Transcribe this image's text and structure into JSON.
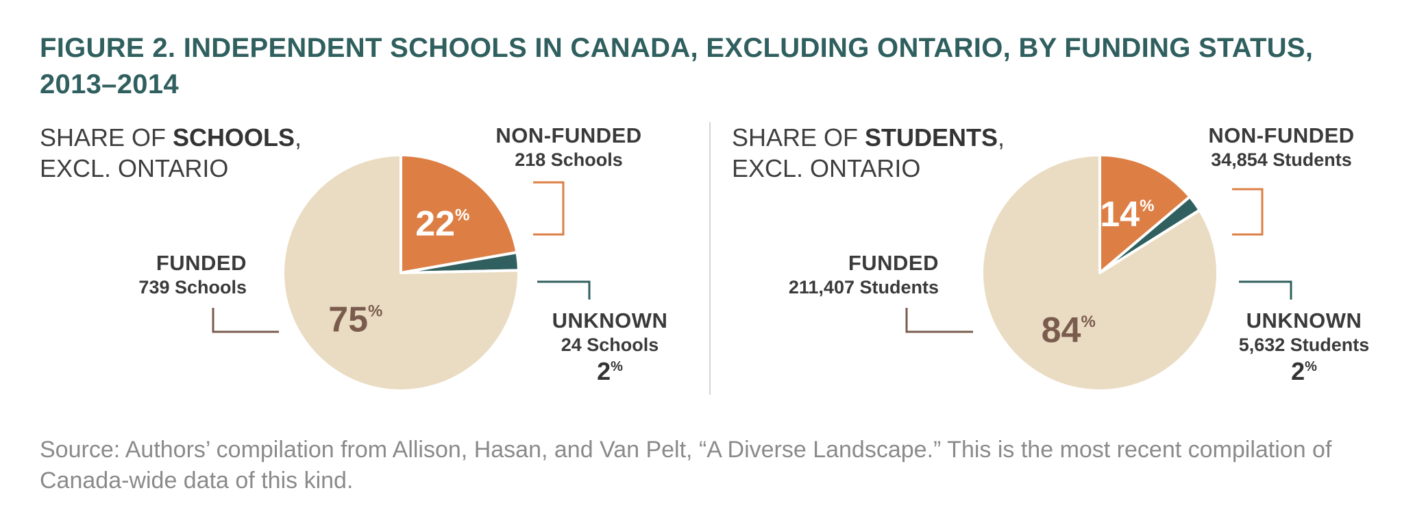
{
  "title": "FIGURE 2. INDEPENDENT SCHOOLS IN CANADA, EXCLUDING ONTARIO, BY FUNDING STATUS, 2013–2014",
  "source": "Source: Authors’ compilation from Allison, Hasan, and Van Pelt, “A Diverse Landscape.” This is the most recent compilation of Canada-wide data of this kind.",
  "colors": {
    "funded": "#eadcc2",
    "non_funded": "#dd7f45",
    "unknown": "#2f5f5e",
    "funded_text": "#7a5c4e",
    "title": "#2f5f5e"
  },
  "chart_data": [
    {
      "type": "pie",
      "title_prefix": "SHARE OF ",
      "title_bold": "SCHOOLS",
      "title_suffix": ",",
      "title_line2": "EXCL. ONTARIO",
      "slices": [
        {
          "key": "non_funded",
          "label": "NON-FUNDED",
          "count_text": "218 Schools",
          "count": 218,
          "percent": 22,
          "color": "#dd7f45"
        },
        {
          "key": "unknown",
          "label": "UNKNOWN",
          "count_text": "24 Schools",
          "count": 24,
          "percent": 2,
          "color": "#2f5f5e"
        },
        {
          "key": "funded",
          "label": "FUNDED",
          "count_text": "739 Schools",
          "count": 739,
          "percent": 75,
          "color": "#eadcc2"
        }
      ]
    },
    {
      "type": "pie",
      "title_prefix": "SHARE OF ",
      "title_bold": "STUDENTS",
      "title_suffix": ",",
      "title_line2": "EXCL. ONTARIO",
      "slices": [
        {
          "key": "non_funded",
          "label": "NON-FUNDED",
          "count_text": "34,854 Students",
          "count": 34854,
          "percent": 14,
          "color": "#dd7f45"
        },
        {
          "key": "unknown",
          "label": "UNKNOWN",
          "count_text": "5,632 Students",
          "count": 5632,
          "percent": 2,
          "color": "#2f5f5e"
        },
        {
          "key": "funded",
          "label": "FUNDED",
          "count_text": "211,407 Students",
          "count": 211407,
          "percent": 84,
          "color": "#eadcc2"
        }
      ]
    }
  ]
}
